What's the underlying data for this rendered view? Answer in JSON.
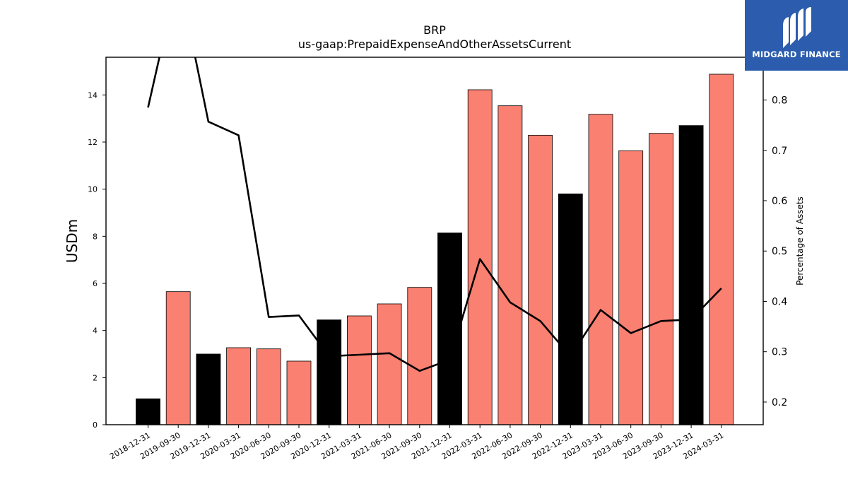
{
  "brand": {
    "name": "MIDGARD FINANCE",
    "bg_color": "#2b5cad"
  },
  "chart_data": {
    "type": "bar+line",
    "title": "BRP",
    "subtitle": "us-gaap:PrepaidExpenseAndOtherAssetsCurrent",
    "ylabel": "USDm",
    "y2label": "Percentage of Assets",
    "ylim": [
      0,
      15.6
    ],
    "y2lim": [
      0.155,
      0.885
    ],
    "yticks": [
      0,
      2,
      4,
      6,
      8,
      10,
      12,
      14
    ],
    "y2ticks": [
      0.2,
      0.3,
      0.4,
      0.5,
      0.6,
      0.7,
      0.8
    ],
    "categories": [
      "2018-12-31",
      "2019-09-30",
      "2019-12-31",
      "2020-03-31",
      "2020-06-30",
      "2020-09-30",
      "2020-12-31",
      "2021-03-31",
      "2021-06-30",
      "2021-09-30",
      "2021-12-31",
      "2022-03-31",
      "2022-06-30",
      "2022-09-30",
      "2022-12-31",
      "2023-03-31",
      "2023-06-30",
      "2023-09-30",
      "2023-12-31",
      "2024-03-31"
    ],
    "series": [
      {
        "type": "bar",
        "axis": "left",
        "values": [
          1.1,
          5.65,
          3.0,
          3.27,
          3.22,
          2.7,
          4.45,
          4.62,
          5.13,
          5.83,
          8.14,
          14.22,
          13.54,
          12.29,
          9.8,
          13.18,
          11.63,
          12.37,
          12.7,
          14.88
        ],
        "colors": [
          "#000000",
          "#fa8072",
          "#000000",
          "#fa8072",
          "#fa8072",
          "#fa8072",
          "#000000",
          "#fa8072",
          "#fa8072",
          "#fa8072",
          "#000000",
          "#fa8072",
          "#fa8072",
          "#fa8072",
          "#000000",
          "#fa8072",
          "#fa8072",
          "#fa8072",
          "#000000",
          "#fa8072"
        ]
      },
      {
        "type": "line",
        "axis": "right",
        "color": "#000000",
        "values": [
          0.785,
          1.05,
          0.757,
          0.73,
          0.369,
          0.372,
          0.291,
          0.294,
          0.297,
          0.262,
          0.284,
          0.484,
          0.398,
          0.361,
          0.291,
          0.383,
          0.337,
          0.361,
          0.364,
          0.426
        ]
      }
    ],
    "grid": false,
    "legend": "none"
  }
}
